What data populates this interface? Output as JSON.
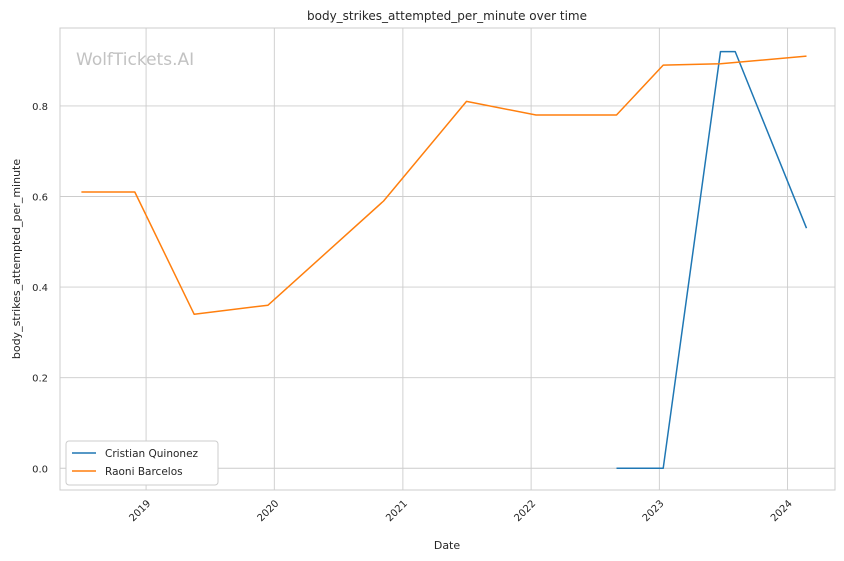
{
  "chart_data": {
    "type": "line",
    "title": "body_strikes_attempted_per_minute over time",
    "xlabel": "Date",
    "ylabel": "body_strikes_attempted_per_minute",
    "watermark": "WolfTickets.AI",
    "xlim": [
      "2018-05-01",
      "2024-05-15"
    ],
    "ylim": [
      -0.048,
      0.972
    ],
    "x_ticks": [
      "2019-01-01",
      "2020-01-01",
      "2021-01-01",
      "2022-01-01",
      "2023-01-01",
      "2024-01-01"
    ],
    "x_tick_labels": [
      "2019",
      "2020",
      "2021",
      "2022",
      "2023",
      "2024"
    ],
    "y_ticks": [
      0.0,
      0.2,
      0.4,
      0.6,
      0.8
    ],
    "y_tick_labels": [
      "0.0",
      "0.2",
      "0.4",
      "0.6",
      "0.8"
    ],
    "grid": true,
    "legend_position": "lower-left",
    "series": [
      {
        "name": "Cristian Quinonez",
        "color": "#1f77b4",
        "x": [
          "2022-09-01",
          "2023-01-12",
          "2023-06-24",
          "2023-08-05",
          "2024-02-24"
        ],
        "y": [
          0.0,
          0.0,
          0.92,
          0.92,
          0.53
        ]
      },
      {
        "name": "Raoni Barcelos",
        "color": "#ff7f0e",
        "x": [
          "2018-07-01",
          "2018-11-30",
          "2019-05-18",
          "2019-12-14",
          "2020-11-07",
          "2021-07-01",
          "2022-01-15",
          "2022-09-01",
          "2023-01-12",
          "2023-06-24",
          "2024-02-24"
        ],
        "y": [
          0.61,
          0.61,
          0.34,
          0.36,
          0.59,
          0.81,
          0.78,
          0.78,
          0.89,
          0.893,
          0.91
        ]
      }
    ]
  }
}
